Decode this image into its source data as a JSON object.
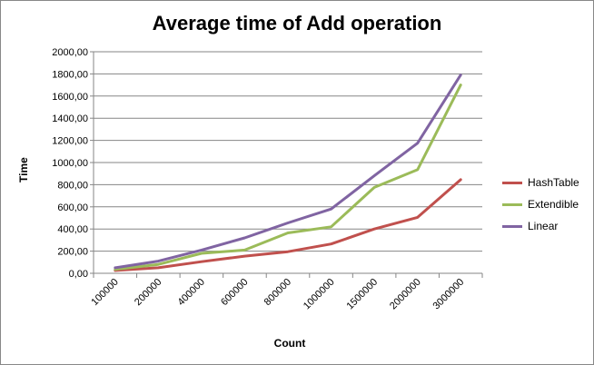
{
  "chart_data": {
    "type": "line",
    "title": "Average time of Add operation",
    "xlabel": "Count",
    "ylabel": "Time",
    "categories": [
      "100000",
      "200000",
      "400000",
      "600000",
      "800000",
      "1000000",
      "1500000",
      "2000000",
      "3000000"
    ],
    "ylim": [
      0,
      2000
    ],
    "yticks": [
      "0,00",
      "200,00",
      "400,00",
      "600,00",
      "800,00",
      "1000,00",
      "1200,00",
      "1400,00",
      "1600,00",
      "1800,00",
      "2000,00"
    ],
    "grid": true,
    "legend": "right",
    "series": [
      {
        "name": "HashTable",
        "color": "#c0504d",
        "values": [
          25,
          50,
          105,
          155,
          195,
          265,
          400,
          505,
          845
        ]
      },
      {
        "name": "Extendible",
        "color": "#9bbb59",
        "values": [
          35,
          80,
          180,
          210,
          365,
          420,
          775,
          935,
          1700
        ]
      },
      {
        "name": "Linear",
        "color": "#8064a2",
        "values": [
          50,
          110,
          210,
          320,
          455,
          580,
          880,
          1175,
          1790
        ]
      }
    ]
  }
}
